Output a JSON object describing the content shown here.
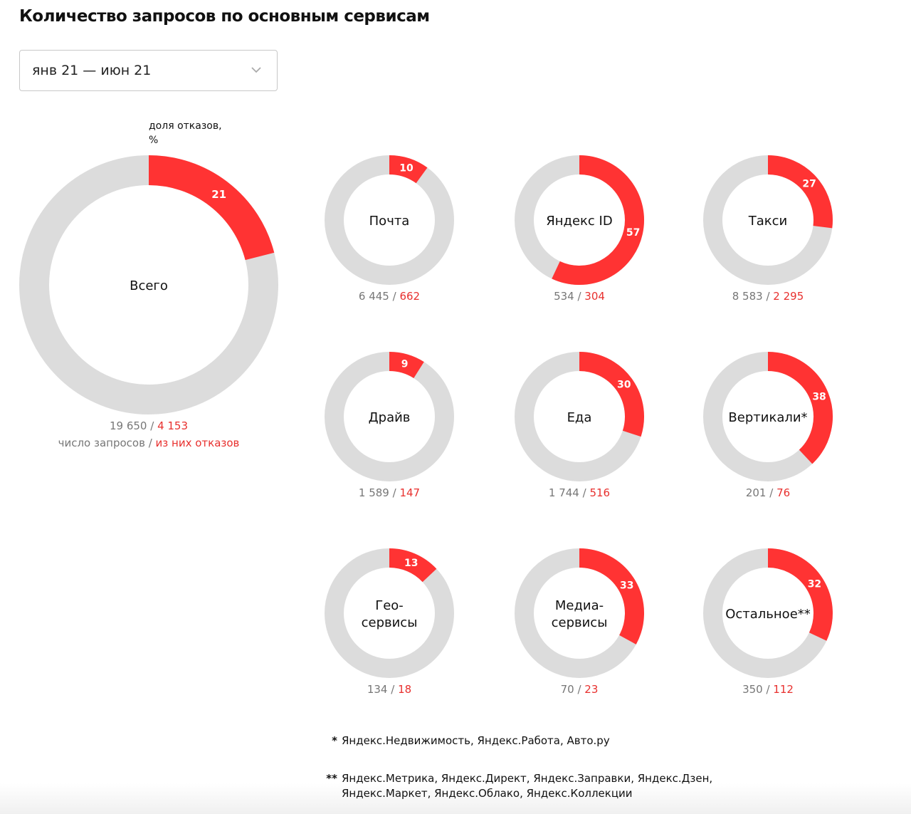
{
  "title": "Количество запросов по основным сервисам",
  "period_select": {
    "value": "янв 21 — июн 21",
    "icon": "chevron-down-icon"
  },
  "colors": {
    "refusal": "#ff3333",
    "rest": "#dcdcdc",
    "refusal_text": "#e8302e",
    "count_text": "#777777"
  },
  "chart_data": {
    "type": "donut",
    "value_label": "доля отказов, %",
    "total": {
      "label": "Всего",
      "percent": 21,
      "requests": "19 650",
      "refusals": "4 153",
      "requests_caption": "число запросов",
      "refusals_caption": "из них отказов"
    },
    "services": [
      {
        "label": [
          "Почта"
        ],
        "percent": 10,
        "requests": "6 445",
        "refusals": "662"
      },
      {
        "label": [
          "Яндекс ID"
        ],
        "percent": 57,
        "requests": "534",
        "refusals": "304"
      },
      {
        "label": [
          "Такси"
        ],
        "percent": 27,
        "requests": "8 583",
        "refusals": "2 295"
      },
      {
        "label": [
          "Драйв"
        ],
        "percent": 9,
        "requests": "1 589",
        "refusals": "147"
      },
      {
        "label": [
          "Еда"
        ],
        "percent": 30,
        "requests": "1 744",
        "refusals": "516"
      },
      {
        "label": [
          "Вертикали*"
        ],
        "percent": 38,
        "requests": "201",
        "refusals": "76"
      },
      {
        "label": [
          "Гео-",
          "сервисы"
        ],
        "percent": 13,
        "requests": "134",
        "refusals": "18"
      },
      {
        "label": [
          "Медиа-",
          "сервисы"
        ],
        "percent": 33,
        "requests": "70",
        "refusals": "23"
      },
      {
        "label": [
          "Остальное**"
        ],
        "percent": 32,
        "requests": "350",
        "refusals": "112"
      }
    ]
  },
  "footnotes": [
    {
      "mark": "*",
      "lines": [
        "Яндекс.Недвижимость, Яндекс.Работа, Авто.ру"
      ]
    },
    {
      "mark": "**",
      "lines": [
        "Яндекс.Метрика, Яндекс.Директ, Яндекс.Заправки, Яндекс.Дзен,",
        "Яндекс.Маркет, Яндекс.Облако, Яндекс.Коллекции"
      ]
    }
  ]
}
